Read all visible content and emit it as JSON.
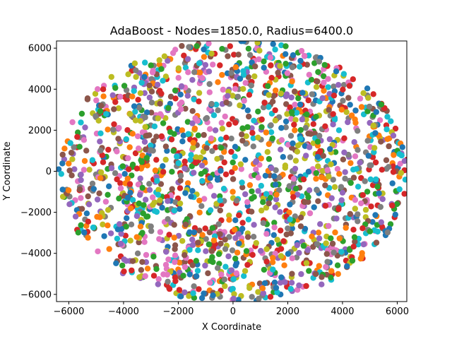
{
  "chart_data": {
    "type": "scatter",
    "title": "AdaBoost - Nodes=1850.0, Radius=6400.0",
    "xlabel": "X Coordinate",
    "ylabel": "Y Coordinate",
    "xlim": [
      -6450,
      6350
    ],
    "ylim": [
      -6350,
      6350
    ],
    "xticks": [
      -6000,
      -4000,
      -2000,
      0,
      2000,
      4000,
      6000
    ],
    "xtick_labels": [
      "−6000",
      "−4000",
      "−2000",
      "0",
      "2000",
      "4000",
      "6000"
    ],
    "yticks": [
      -6000,
      -4000,
      -2000,
      0,
      2000,
      4000,
      6000
    ],
    "ytick_labels": [
      "−6000",
      "−4000",
      "−2000",
      "0",
      "2000",
      "4000",
      "6000"
    ],
    "grid": false,
    "legend": "none",
    "point_count": 1850,
    "region": {
      "shape": "disk",
      "center": [
        0,
        0
      ],
      "radius": 6400
    },
    "palette": [
      "#1f77b4",
      "#ff7f0e",
      "#2ca02c",
      "#d62728",
      "#9467bd",
      "#8c564b",
      "#e377c2",
      "#7f7f7f",
      "#bcbd22",
      "#17becf"
    ]
  }
}
